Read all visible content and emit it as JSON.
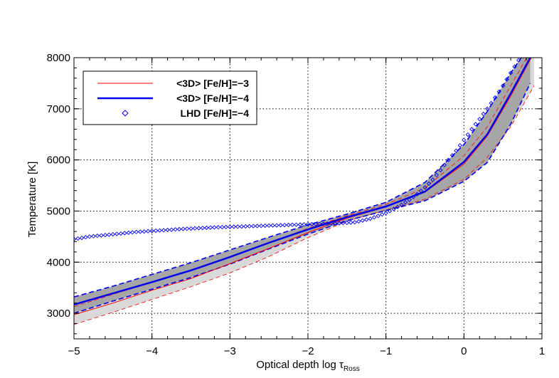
{
  "chart_data": {
    "type": "line",
    "xlabel": "Optical depth log τ",
    "xlabel_sub": "Ross",
    "ylabel": "Temperature [K]",
    "xlim": [
      -5,
      1
    ],
    "ylim": [
      2500,
      8000
    ],
    "x_ticks": [
      -5,
      -4,
      -3,
      -2,
      -1,
      0,
      1
    ],
    "x_tick_labels": [
      "−5",
      "−4",
      "−3",
      "−2",
      "−1",
      "0",
      "1"
    ],
    "y_ticks": [
      3000,
      4000,
      5000,
      6000,
      7000,
      8000
    ],
    "y_tick_labels": [
      "3000",
      "4000",
      "5000",
      "6000",
      "7000",
      "8000"
    ],
    "grid": true,
    "legend_position": "top-left",
    "colors": {
      "red": "#ff0000",
      "blue": "#0000ee",
      "band_dark": "#a6a6a6",
      "band_light": "#d9d9d9"
    },
    "series": [
      {
        "name": "<3D> [Fe/H]=−3",
        "style": "thin-red-line",
        "x": [
          -5.0,
          -4.5,
          -4.0,
          -3.5,
          -3.0,
          -2.5,
          -2.0,
          -1.5,
          -1.0,
          -0.5,
          0.0,
          0.3,
          0.6,
          0.9
        ],
        "y": [
          2970,
          3200,
          3450,
          3680,
          3970,
          4270,
          4580,
          4860,
          5080,
          5370,
          5920,
          6470,
          7250,
          8100
        ],
        "band_upper": [
          3130,
          3370,
          3600,
          3830,
          4090,
          4380,
          4660,
          4910,
          5130,
          5450,
          6080,
          6650,
          7450,
          8250
        ],
        "band_lower": [
          2780,
          3020,
          3270,
          3520,
          3790,
          4110,
          4480,
          4800,
          5020,
          5230,
          5620,
          6050,
          6650,
          7450
        ]
      },
      {
        "name": "<3D> [Fe/H]=−4",
        "style": "thick-blue-line",
        "x": [
          -5.0,
          -4.5,
          -4.0,
          -3.5,
          -3.0,
          -2.5,
          -2.0,
          -1.5,
          -1.0,
          -0.5,
          0.0,
          0.3,
          0.6,
          0.85
        ],
        "y": [
          3170,
          3390,
          3610,
          3840,
          4100,
          4380,
          4640,
          4880,
          5090,
          5380,
          5960,
          6500,
          7300,
          8000
        ],
        "band_upper": [
          3320,
          3530,
          3760,
          3990,
          4240,
          4490,
          4730,
          4940,
          5170,
          5560,
          6300,
          6950,
          7700,
          8250
        ],
        "band_lower": [
          3000,
          3240,
          3470,
          3700,
          3960,
          4260,
          4550,
          4810,
          5010,
          5200,
          5580,
          5950,
          6700,
          7500
        ]
      },
      {
        "name": "LHD [Fe/H]=−4",
        "style": "blue-diamond-markers",
        "x": [
          -5.0,
          -4.8,
          -4.6,
          -4.4,
          -4.2,
          -4.0,
          -3.8,
          -3.6,
          -3.4,
          -3.2,
          -3.0,
          -2.8,
          -2.6,
          -2.4,
          -2.2,
          -2.0,
          -1.8,
          -1.6,
          -1.4,
          -1.2,
          -1.0,
          -0.9,
          -0.8,
          -0.7,
          -0.6,
          -0.5,
          -0.4,
          -0.3,
          -0.2,
          -0.1,
          0.0,
          0.1,
          0.2,
          0.3,
          0.4,
          0.5,
          0.6,
          0.7
        ],
        "y": [
          4450,
          4500,
          4530,
          4560,
          4590,
          4610,
          4630,
          4650,
          4665,
          4680,
          4690,
          4700,
          4710,
          4720,
          4730,
          4740,
          4750,
          4760,
          4780,
          4850,
          4960,
          5040,
          5120,
          5220,
          5330,
          5460,
          5610,
          5800,
          6000,
          6180,
          6390,
          6600,
          6800,
          7000,
          7220,
          7450,
          7700,
          7950
        ]
      }
    ]
  }
}
